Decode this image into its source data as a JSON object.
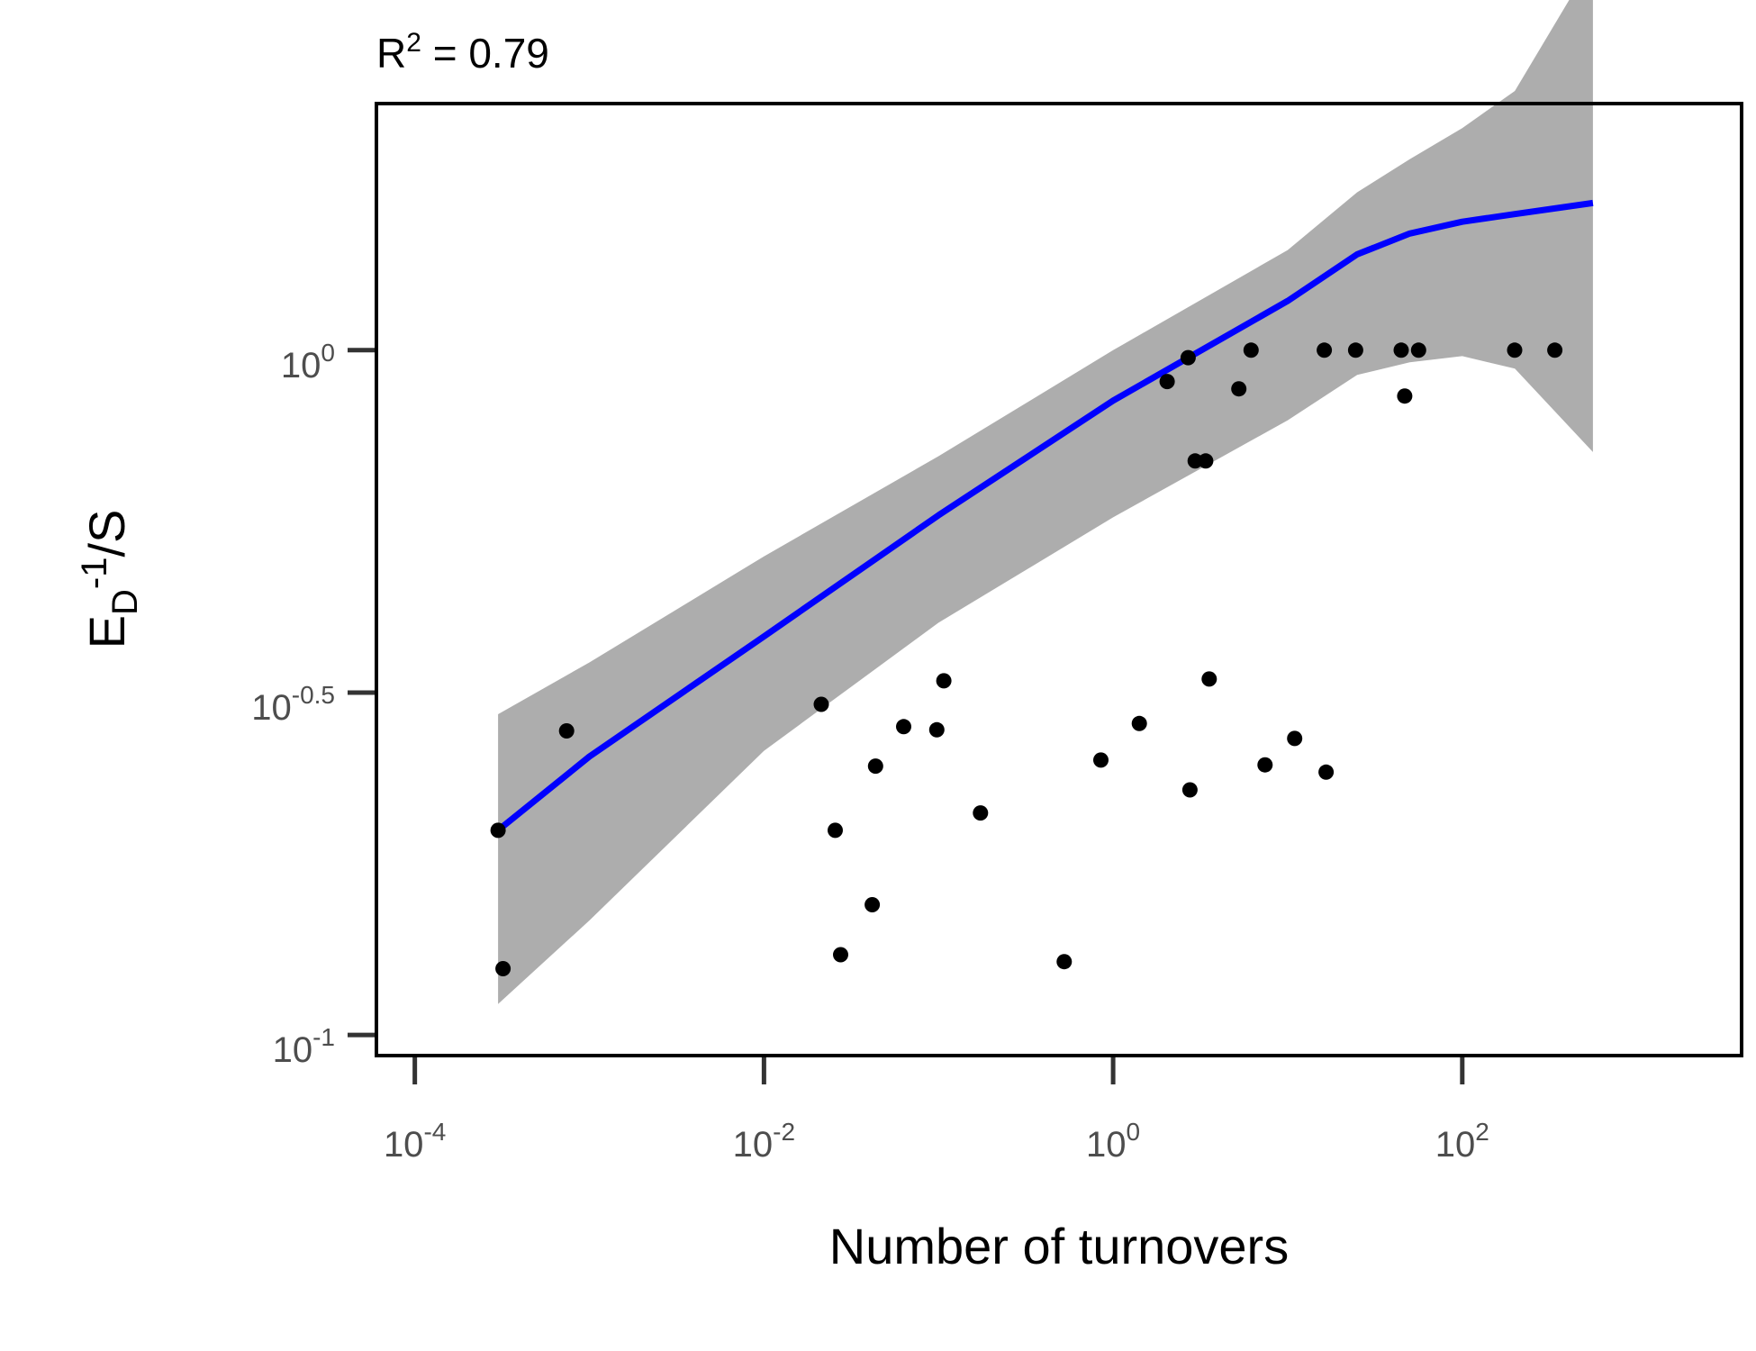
{
  "chart_data": {
    "type": "scatter",
    "annotation": {
      "base": "R",
      "exp": "2",
      "rest": " = 0.79"
    },
    "xlabel": "Number of turnovers",
    "ylabel": {
      "main": "E",
      "sub": "D",
      "sup": "-1",
      "rest": "/S"
    },
    "x_scale": "log10",
    "y_scale": "log10",
    "xlim_log10": [
      -4.22,
      3.6
    ],
    "ylim_log10": [
      -1.03,
      0.36
    ],
    "x_ticks": [
      {
        "base": "10",
        "exp": "-4",
        "log10": -4
      },
      {
        "base": "10",
        "exp": "-2",
        "log10": -2
      },
      {
        "base": "10",
        "exp": "0",
        "log10": 0
      },
      {
        "base": "10",
        "exp": "2",
        "log10": 2
      }
    ],
    "y_ticks": [
      {
        "base": "10",
        "exp": "-1",
        "log10": -1
      },
      {
        "base": "10",
        "exp": "-0.5",
        "log10": -0.5
      },
      {
        "base": "10",
        "exp": "0",
        "log10": 0
      }
    ],
    "grid": false,
    "colors": {
      "points": "#000000",
      "fit": "#0000ff",
      "band": "#adadad",
      "frame": "#000000",
      "ticks": "#333333"
    },
    "points": [
      {
        "x": 0.0003,
        "y": 0.199
      },
      {
        "x": 0.00032,
        "y": 0.125
      },
      {
        "x": 0.00074,
        "y": 0.278
      },
      {
        "x": 0.0213,
        "y": 0.304
      },
      {
        "x": 0.0256,
        "y": 0.199
      },
      {
        "x": 0.0275,
        "y": 0.131
      },
      {
        "x": 0.0417,
        "y": 0.155
      },
      {
        "x": 0.0436,
        "y": 0.247
      },
      {
        "x": 0.0631,
        "y": 0.282
      },
      {
        "x": 0.0977,
        "y": 0.279
      },
      {
        "x": 0.1072,
        "y": 0.329
      },
      {
        "x": 0.1738,
        "y": 0.211
      },
      {
        "x": 0.5248,
        "y": 0.128
      },
      {
        "x": 0.8511,
        "y": 0.252
      },
      {
        "x": 1.413,
        "y": 0.285
      },
      {
        "x": 2.754,
        "y": 0.228
      },
      {
        "x": 7.413,
        "y": 0.248
      },
      {
        "x": 10.96,
        "y": 0.271
      },
      {
        "x": 16.6,
        "y": 0.242
      },
      {
        "x": 2.04,
        "y": 0.9
      },
      {
        "x": 2.69,
        "y": 0.975
      },
      {
        "x": 2.95,
        "y": 0.689
      },
      {
        "x": 3.39,
        "y": 0.689
      },
      {
        "x": 3.55,
        "y": 0.331
      },
      {
        "x": 5.25,
        "y": 0.878
      },
      {
        "x": 6.17,
        "y": 1.0
      },
      {
        "x": 16.2,
        "y": 1.0
      },
      {
        "x": 24.5,
        "y": 1.0
      },
      {
        "x": 44.7,
        "y": 1.0
      },
      {
        "x": 46.8,
        "y": 0.857
      },
      {
        "x": 56.2,
        "y": 1.0
      },
      {
        "x": 199.5,
        "y": 1.0
      },
      {
        "x": 338.8,
        "y": 1.0
      }
    ],
    "fit_line": {
      "x": [
        0.0003,
        0.001,
        0.01,
        0.1,
        1,
        10,
        25,
        50,
        100,
        200,
        560
      ],
      "y": [
        0.199,
        0.255,
        0.382,
        0.574,
        0.844,
        1.18,
        1.38,
        1.48,
        1.54,
        1.58,
        1.64
      ]
    },
    "band_upper": {
      "x": [
        0.0003,
        0.001,
        0.01,
        0.1,
        1,
        10,
        25,
        50,
        100,
        200,
        560
      ],
      "y": [
        0.294,
        0.35,
        0.5,
        0.7,
        1.0,
        1.4,
        1.7,
        1.9,
        2.11,
        2.39,
        3.71
      ]
    },
    "band_lower": {
      "x": [
        0.0003,
        0.001,
        0.01,
        0.1,
        1,
        10,
        25,
        50,
        100,
        200,
        560
      ],
      "y": [
        0.111,
        0.147,
        0.26,
        0.4,
        0.57,
        0.79,
        0.92,
        0.96,
        0.98,
        0.94,
        0.71
      ]
    }
  }
}
